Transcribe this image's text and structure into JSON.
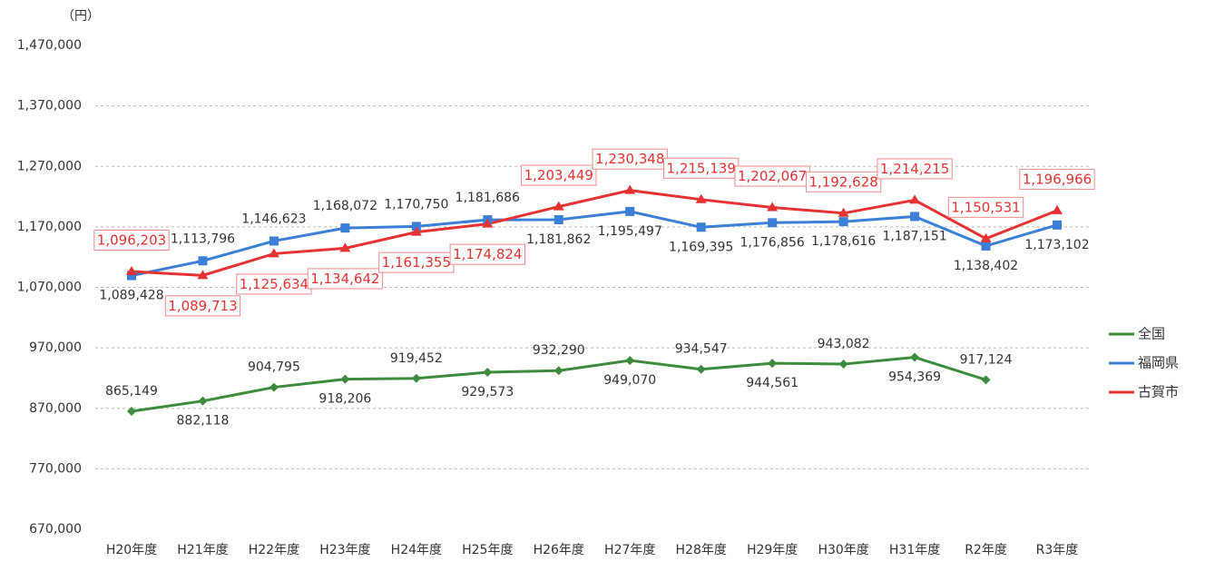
{
  "chart_data": {
    "type": "line",
    "unit_label": "（円）",
    "categories": [
      "H20年度",
      "H21年度",
      "H22年度",
      "H23年度",
      "H24年度",
      "H25年度",
      "H26年度",
      "H27年度",
      "H28年度",
      "H29年度",
      "H30年度",
      "H31年度",
      "R2年度",
      "R3年度"
    ],
    "series": [
      {
        "name": "全国",
        "color": "#3d8c3d",
        "values": [
          865149,
          882118,
          904795,
          918206,
          919452,
          929573,
          932290,
          949070,
          934547,
          944561,
          943082,
          954369,
          917124,
          null
        ],
        "value_labels": [
          "865,149",
          "882,118",
          "904,795",
          "918,206",
          "919,452",
          "929,573",
          "932,290",
          "949,070",
          "934,547",
          "944,561",
          "943,082",
          "954,369",
          "917,124",
          null
        ]
      },
      {
        "name": "福岡県",
        "color": "#3b7fd6",
        "values": [
          1089428,
          1113796,
          1146623,
          1168072,
          1170750,
          1181686,
          1181862,
          1195497,
          1169395,
          1176856,
          1178616,
          1187151,
          1138402,
          1173102
        ],
        "value_labels": [
          "1,089,428",
          "1,113,796",
          "1,146,623",
          "1,168,072",
          "1,170,750",
          "1,181,686",
          "1,181,862",
          "1,195,497",
          "1,169,395",
          "1,176,856",
          "1,178,616",
          "1,187,151",
          "1,138,402",
          "1,173,102"
        ]
      },
      {
        "name": "古賀市",
        "color": "#e53232",
        "values": [
          1096203,
          1089713,
          1125634,
          1134642,
          1161355,
          1174824,
          1203449,
          1230348,
          1215139,
          1202067,
          1192628,
          1214215,
          1150531,
          1196966
        ],
        "value_labels": [
          "1,096,203",
          "1,089,713",
          "1,125,634",
          "1,134,642",
          "1,161,355",
          "1,174,824",
          "1,203,449",
          "1,230,348",
          "1,215,139",
          "1,202,067",
          "1,192,628",
          "1,214,215",
          "1,150,531",
          "1,196,966"
        ]
      }
    ],
    "ylim": [
      670000,
      1470000
    ],
    "yticks": [
      {
        "value": 670000,
        "label": "670,000"
      },
      {
        "value": 770000,
        "label": "770,000"
      },
      {
        "value": 870000,
        "label": "870,000"
      },
      {
        "value": 970000,
        "label": "970,000"
      },
      {
        "value": 1070000,
        "label": "1,070,000"
      },
      {
        "value": 1170000,
        "label": "1,170,000"
      },
      {
        "value": 1270000,
        "label": "1,270,000"
      },
      {
        "value": 1370000,
        "label": "1,370,000"
      },
      {
        "value": 1470000,
        "label": "1,470,000"
      }
    ],
    "grid": true,
    "legend": "right"
  }
}
